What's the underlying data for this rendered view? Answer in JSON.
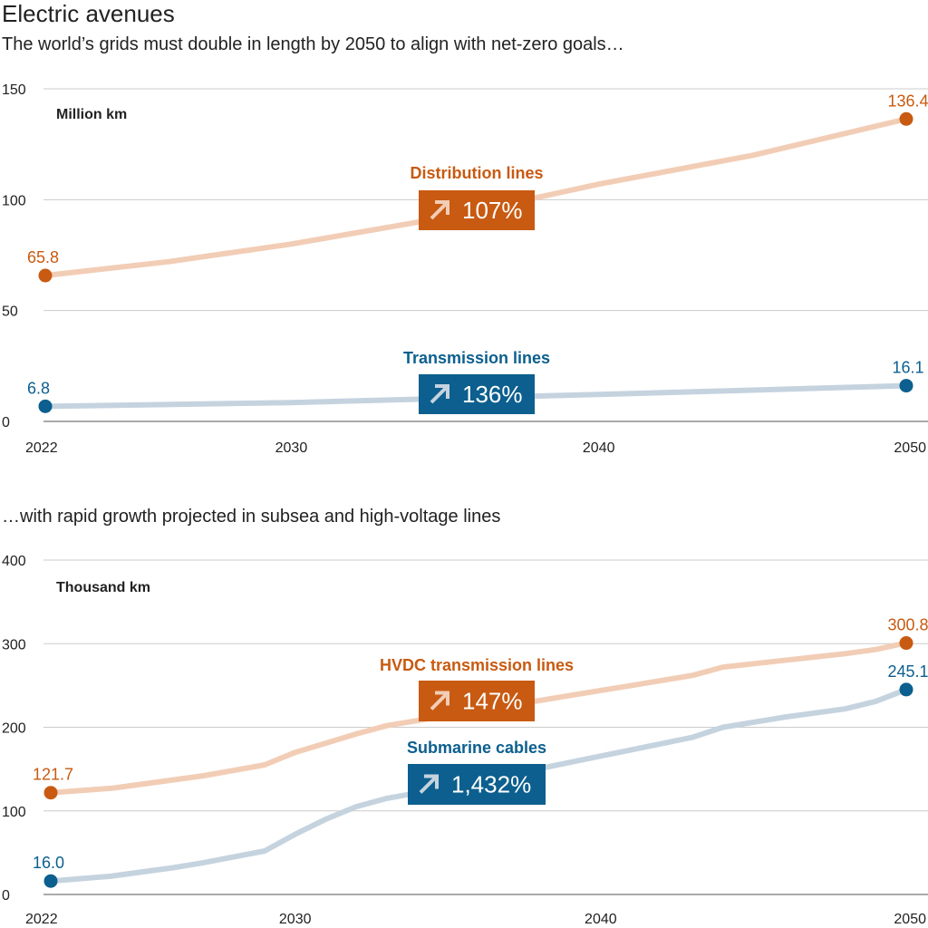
{
  "header": {
    "title": "Electric avenues",
    "subtitle": "The world’s grids must double in length by 2050 to align with net-zero goals…",
    "subtitle2": "…with rapid growth projected in subsea and high-voltage lines"
  },
  "colors": {
    "orange": "#c85a11",
    "orange_light": "#f2cdb6",
    "blue": "#0c5f8e",
    "blue_light": "#c5d3df",
    "grid": "#cccccc",
    "text": "#222222"
  },
  "chart_data": [
    {
      "type": "line",
      "unit_label": "Million km",
      "ylim": [
        0,
        150
      ],
      "yticks": [
        0,
        50,
        100,
        150
      ],
      "xlim": [
        2022,
        2050
      ],
      "xticks": [
        2022,
        2030,
        2040,
        2050
      ],
      "grid": true,
      "series": [
        {
          "name": "Distribution lines",
          "color_key": "orange",
          "badge": "107%",
          "start_label": "65.8",
          "end_label": "136.4",
          "points": [
            [
              2022,
              65.8
            ],
            [
              2026,
              72
            ],
            [
              2030,
              80
            ],
            [
              2035,
              92
            ],
            [
              2040,
              107
            ],
            [
              2045,
              120
            ],
            [
              2050,
              136.4
            ]
          ]
        },
        {
          "name": "Transmission lines",
          "color_key": "blue",
          "badge": "136%",
          "start_label": "6.8",
          "end_label": "16.1",
          "points": [
            [
              2022,
              6.8
            ],
            [
              2030,
              8.5
            ],
            [
              2035,
              10.3
            ],
            [
              2040,
              12.2
            ],
            [
              2045,
              14.1
            ],
            [
              2050,
              16.1
            ]
          ]
        }
      ]
    },
    {
      "type": "line",
      "unit_label": "Thousand km",
      "ylim": [
        0,
        400
      ],
      "yticks": [
        0,
        100,
        200,
        300,
        400
      ],
      "xlim": [
        2022,
        2050
      ],
      "xticks": [
        2022,
        2030,
        2040,
        2050
      ],
      "grid": true,
      "series": [
        {
          "name": "HVDC transmission lines",
          "color_key": "orange",
          "badge": "147%",
          "start_label": "121.7",
          "end_label": "300.8",
          "points": [
            [
              2022,
              121.7
            ],
            [
              2024,
              127
            ],
            [
              2026,
              137
            ],
            [
              2027,
              142
            ],
            [
              2029,
              155
            ],
            [
              2030,
              170
            ],
            [
              2032,
              192
            ],
            [
              2033,
              202
            ],
            [
              2035,
              214
            ],
            [
              2037,
              226
            ],
            [
              2039,
              238
            ],
            [
              2041,
              250
            ],
            [
              2043,
              262
            ],
            [
              2044,
              272
            ],
            [
              2046,
              280
            ],
            [
              2048,
              288
            ],
            [
              2049,
              293
            ],
            [
              2050,
              300.8
            ]
          ]
        },
        {
          "name": "Submarine cables",
          "color_key": "blue",
          "badge": "1,432%",
          "start_label": "16.0",
          "end_label": "245.1",
          "points": [
            [
              2022,
              16.0
            ],
            [
              2024,
              22
            ],
            [
              2026,
              32
            ],
            [
              2027,
              38
            ],
            [
              2029,
              52
            ],
            [
              2030,
              72
            ],
            [
              2031,
              90
            ],
            [
              2032,
              105
            ],
            [
              2033,
              115
            ],
            [
              2035,
              128
            ],
            [
              2037,
              143
            ],
            [
              2039,
              158
            ],
            [
              2041,
              173
            ],
            [
              2043,
              188
            ],
            [
              2044,
              200
            ],
            [
              2046,
              212
            ],
            [
              2048,
              222
            ],
            [
              2049,
              231
            ],
            [
              2050,
              245.1
            ]
          ]
        }
      ]
    }
  ]
}
